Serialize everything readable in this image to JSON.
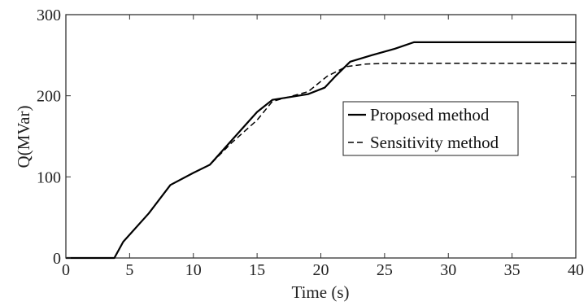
{
  "chart_data": {
    "type": "line",
    "title": "",
    "xlabel": "Time (s)",
    "ylabel": "Q(MVar)",
    "xlim": [
      0,
      40
    ],
    "ylim": [
      0,
      300
    ],
    "xticks": [
      0,
      5,
      10,
      15,
      20,
      25,
      30,
      35,
      40
    ],
    "yticks": [
      0,
      100,
      200,
      300
    ],
    "grid": false,
    "legend_position": "center-right",
    "series": [
      {
        "name": "Proposed method",
        "style": "solid",
        "color": "#000000",
        "x": [
          0,
          3.8,
          4.5,
          6.5,
          8.2,
          10,
          11.3,
          13,
          15,
          16.2,
          19,
          20.3,
          21.2,
          22.3,
          24,
          25.8,
          27.3,
          40
        ],
        "y": [
          0,
          0,
          20,
          55,
          90,
          105,
          115,
          145,
          180,
          195,
          202,
          210,
          225,
          242,
          250,
          258,
          266,
          266
        ]
      },
      {
        "name": "Sensitivity method",
        "style": "dashed",
        "color": "#000000",
        "x": [
          0,
          3.8,
          4.5,
          6.5,
          8.2,
          10,
          11.3,
          13,
          15,
          16.2,
          19,
          20.5,
          22,
          23.5,
          25,
          40
        ],
        "y": [
          0,
          0,
          20,
          55,
          90,
          105,
          115,
          142,
          170,
          193,
          205,
          224,
          236,
          239,
          240,
          240
        ]
      }
    ]
  }
}
